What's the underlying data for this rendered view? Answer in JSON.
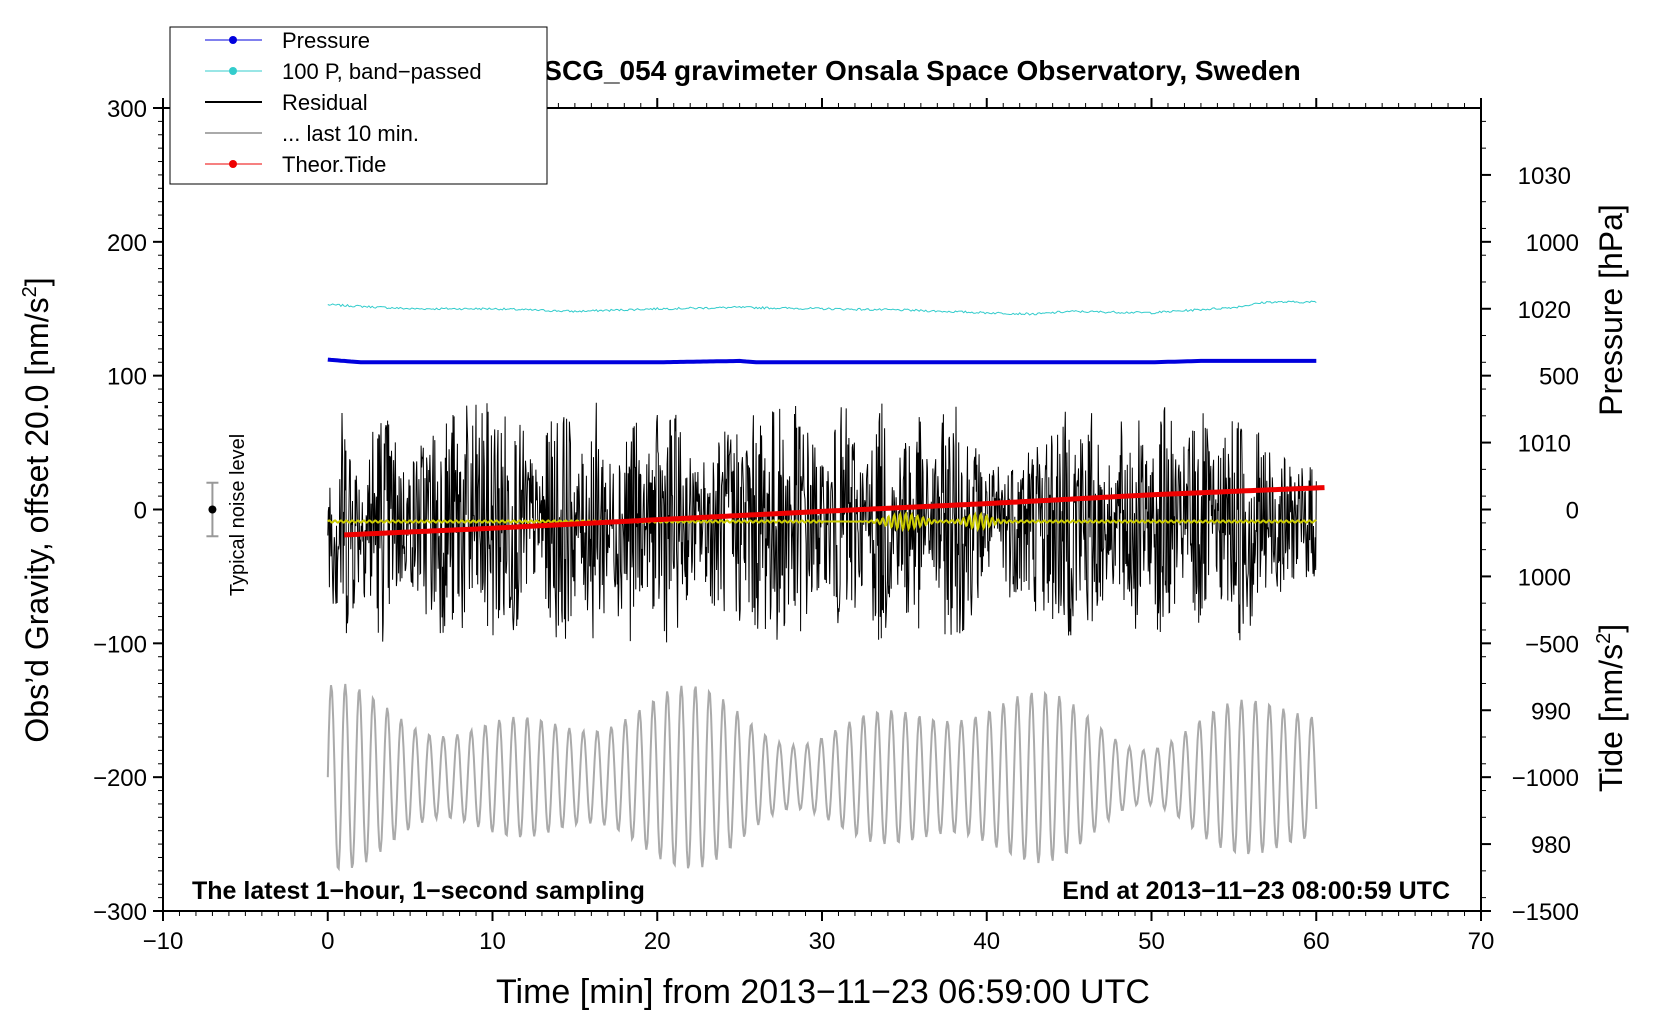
{
  "chart_data": {
    "type": "line",
    "title": "SCG_054 gravimeter Onsala Space Observatory, Sweden",
    "xlabel": "Time [min] from 2013−11−23 06:59:00 UTC",
    "ylabel_main": "Obs’d Gravity, offset 20.0 [nm/s",
    "ylabel_main_sup": "2",
    "ylabel_main_tail": "]",
    "ylabel_pressure": "Pressure [hPa]",
    "ylabel_tide": "Tide [nm/s",
    "ylabel_tide_sup": "2",
    "ylabel_tide_tail": "]",
    "xlim": [
      -10,
      70
    ],
    "ylim": [
      -300,
      300
    ],
    "pressure_lim": [
      975,
      1035
    ],
    "tide_lim": [
      -1500,
      1500
    ],
    "x_ticks": [
      "−10",
      "0",
      "10",
      "20",
      "30",
      "40",
      "50",
      "60",
      "70"
    ],
    "x_tick_values": [
      -10,
      0,
      10,
      20,
      30,
      40,
      50,
      60,
      70
    ],
    "y_ticks": [
      "300",
      "200",
      "100",
      "0",
      "−100",
      "−200",
      "−300"
    ],
    "y_tick_values": [
      300,
      200,
      100,
      0,
      -100,
      -200,
      -300
    ],
    "pressure_ticks": [
      "1030",
      "1020",
      "1010",
      "1000",
      "990",
      "980"
    ],
    "pressure_tick_values": [
      1030,
      1020,
      1010,
      1000,
      990,
      980
    ],
    "tide_ticks": [
      "1000",
      "500",
      "0",
      "−500",
      "−1000",
      "−1500"
    ],
    "tide_tick_values": [
      1000,
      500,
      0,
      -500,
      -1000,
      -1500
    ],
    "legend": [
      {
        "label": "Pressure",
        "color": "#0000dd",
        "marker": true
      },
      {
        "label": "100 P, band−passed",
        "color": "#33cccc",
        "marker": true
      },
      {
        "label": "Residual",
        "color": "#000000",
        "marker": false
      },
      {
        "label": "... last 10 min.",
        "color": "#aaaaaa",
        "marker": false
      },
      {
        "label": "Theor.Tide",
        "color": "#ee0000",
        "marker": true
      }
    ],
    "series": [
      {
        "name": "Pressure",
        "axis": "pressure",
        "color": "#0000dd",
        "x": [
          0,
          2,
          10,
          20,
          25,
          26,
          30,
          40,
          45,
          50,
          53,
          55,
          60
        ],
        "y": [
          1016.2,
          1016.0,
          1016.0,
          1016.0,
          1016.1,
          1016.0,
          1016.0,
          1016.0,
          1016.0,
          1016.0,
          1016.1,
          1016.1,
          1016.1
        ]
      },
      {
        "name": "100 P, band-passed",
        "axis": "gravity",
        "color": "#33cccc",
        "x": [
          0,
          5,
          10,
          15,
          20,
          25,
          30,
          35,
          40,
          43,
          45,
          50,
          55,
          57,
          60
        ],
        "y": [
          153,
          150,
          150,
          148,
          150,
          151,
          150,
          149,
          147,
          146,
          148,
          147,
          151,
          155,
          155
        ]
      },
      {
        "name": "Residual",
        "axis": "gravity",
        "color": "#000000",
        "x_range": [
          0,
          60
        ],
        "amplitude_envelope": [
          40,
          90
        ]
      },
      {
        "name": "... last 10 min.",
        "axis": "gravity",
        "color": "#aaaaaa",
        "x_range": [
          0,
          60
        ],
        "center": -200,
        "amplitude_envelope": [
          20,
          70
        ]
      },
      {
        "name": "Yellow filtered trace",
        "axis": "gravity",
        "color": "#cccc00",
        "x_range": [
          0,
          60
        ],
        "level": -9
      },
      {
        "name": "Theor.Tide",
        "axis": "tide",
        "color": "#ee0000",
        "x": [
          1,
          10,
          20,
          30,
          40,
          50,
          60.5
        ],
        "y": [
          -95,
          -70,
          -38,
          -7,
          22,
          55,
          82
        ]
      }
    ],
    "noise_bar": {
      "label": "Typical noise level",
      "x": -7,
      "center": 0,
      "low": -20,
      "high": 20
    },
    "annotations": {
      "bottom_left": "The latest 1−hour, 1−second sampling",
      "bottom_right": "End at 2013−11−23 08:00:59 UTC"
    }
  }
}
